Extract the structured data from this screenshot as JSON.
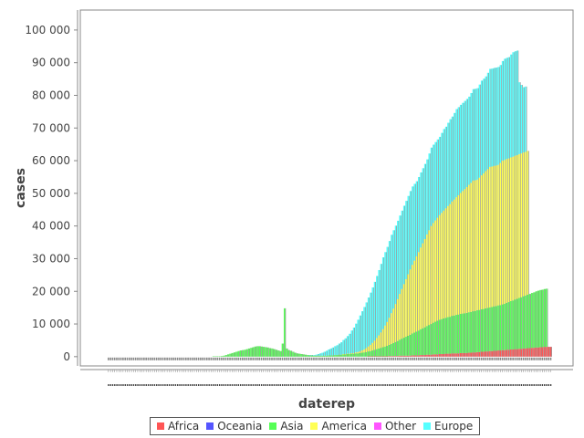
{
  "chart_data": {
    "type": "bar",
    "stacked": true,
    "xlabel": "daterep",
    "ylabel": "cases",
    "ylim": [
      -2000,
      105000
    ],
    "yticks": [
      0,
      10000,
      20000,
      30000,
      40000,
      50000,
      60000,
      70000,
      80000,
      90000,
      100000
    ],
    "ytick_labels": [
      "0",
      "10 000",
      "20 000",
      "30 000",
      "40 000",
      "50 000",
      "60 000",
      "70 000",
      "80 000",
      "90 000",
      "100 000"
    ],
    "x_tick_labels_note": "dense unreadable date labels",
    "legend": "bottom-center",
    "grid": false,
    "series": [
      {
        "name": "Africa",
        "color": "#ff5555",
        "values": [
          0,
          0,
          0,
          0,
          0,
          0,
          0,
          0,
          0,
          0,
          0,
          0,
          0,
          0,
          0,
          0,
          0,
          0,
          0,
          0,
          0,
          0,
          0,
          0,
          0,
          0,
          0,
          0,
          0,
          0,
          0,
          0,
          0,
          0,
          0,
          0,
          0,
          0,
          0,
          0,
          0,
          0,
          0,
          0,
          0,
          0,
          0,
          0,
          0,
          0,
          0,
          0,
          0,
          0,
          0,
          0,
          0,
          0,
          0,
          0,
          0,
          0,
          0,
          0,
          0,
          0,
          0,
          0,
          0,
          0,
          0,
          0,
          0,
          0,
          0,
          0,
          0,
          0,
          0,
          0,
          0,
          0,
          0,
          0,
          0,
          0,
          0,
          0,
          0,
          0,
          0,
          0,
          0,
          0,
          0,
          0,
          0,
          0,
          0,
          0,
          0,
          0,
          0,
          0,
          0,
          0,
          0,
          0,
          0,
          0,
          0,
          0,
          0,
          0,
          0,
          0,
          0,
          0,
          0,
          0,
          0,
          0,
          0,
          0,
          100,
          100,
          100,
          100,
          100,
          100,
          100,
          100,
          100,
          100,
          200,
          200,
          200,
          200,
          200,
          300,
          300,
          300,
          300,
          300,
          300,
          400,
          400,
          400,
          400,
          500,
          500,
          500,
          600,
          600,
          600,
          700,
          700,
          700,
          800,
          800,
          800,
          900,
          900,
          900,
          1000,
          1000,
          1000,
          1000,
          1100,
          1100,
          1100,
          1100,
          1200,
          1200,
          1300,
          1300,
          1400,
          1400,
          1500,
          1500,
          1600,
          1600,
          1700,
          1700,
          1800,
          1800,
          1900,
          1900,
          2000,
          2000,
          2100,
          2100,
          2200,
          2200,
          2300,
          2300,
          2400,
          2400,
          2500,
          2500,
          2600,
          2600,
          2700,
          2700,
          2800,
          2800,
          2900,
          2900,
          3000,
          3000,
          3000,
          3000
        ]
      },
      {
        "name": "Oceania",
        "color": "#5555ff",
        "values": [
          0,
          0,
          0,
          0,
          0,
          0,
          0,
          0,
          0,
          0,
          0,
          0,
          0,
          0,
          0,
          0,
          0,
          0,
          0,
          0,
          0,
          0,
          0,
          0,
          0,
          0,
          0,
          0,
          0,
          0,
          0,
          0,
          0,
          0,
          0,
          0,
          0,
          0,
          0,
          0,
          0,
          0,
          0,
          0,
          0,
          0,
          0,
          0,
          0,
          0,
          0,
          0,
          0,
          0,
          0,
          0,
          0,
          0,
          0,
          0,
          0,
          0,
          0,
          0,
          0,
          0,
          0,
          0,
          0,
          0,
          0,
          0,
          0,
          0,
          0,
          0,
          0,
          0,
          0,
          0,
          0,
          0,
          0,
          0,
          0,
          0,
          0,
          0,
          0,
          0,
          0,
          0,
          0,
          0,
          0,
          0,
          0,
          0,
          0,
          0,
          0,
          0,
          0,
          0,
          0,
          0,
          0,
          0,
          0,
          0,
          0,
          0,
          0,
          0,
          0,
          0,
          0,
          0,
          0,
          0,
          0,
          0,
          0,
          0,
          0,
          0,
          0,
          0,
          0,
          0,
          0,
          0,
          0,
          0,
          0,
          0,
          0,
          0,
          0,
          0,
          0,
          0,
          0,
          0,
          0,
          0,
          0,
          0,
          0,
          0,
          0,
          0,
          0,
          0,
          0,
          0,
          0,
          0,
          0,
          0,
          0,
          0,
          0,
          0,
          0,
          0,
          0,
          0,
          0,
          0,
          0,
          0,
          0,
          0,
          0,
          0,
          0,
          0,
          0,
          0,
          0,
          0,
          0,
          0,
          0,
          0,
          0,
          0,
          0,
          0,
          0,
          0,
          0,
          0,
          0,
          0,
          0,
          0,
          0,
          0,
          0,
          0,
          0,
          0,
          0,
          0,
          0,
          0,
          0,
          0,
          0,
          0
        ]
      },
      {
        "name": "Asia",
        "color": "#55ff55",
        "values": [
          0,
          0,
          0,
          0,
          0,
          0,
          0,
          0,
          0,
          0,
          0,
          0,
          0,
          0,
          0,
          0,
          0,
          0,
          0,
          0,
          0,
          0,
          0,
          0,
          0,
          0,
          0,
          0,
          0,
          0,
          0,
          0,
          0,
          0,
          0,
          0,
          0,
          0,
          0,
          0,
          0,
          0,
          0,
          0,
          0,
          0,
          0,
          0,
          0,
          0,
          100,
          100,
          100,
          100,
          200,
          300,
          500,
          700,
          900,
          1100,
          1300,
          1500,
          1700,
          1900,
          2000,
          2100,
          2300,
          2500,
          2700,
          2900,
          3100,
          3200,
          3200,
          3100,
          3000,
          2900,
          2800,
          2600,
          2500,
          2300,
          2100,
          1900,
          1700,
          4000,
          14800,
          2500,
          2000,
          1800,
          1500,
          1200,
          1000,
          900,
          800,
          700,
          600,
          500,
          400,
          400,
          300,
          300,
          300,
          300,
          300,
          300,
          300,
          400,
          400,
          400,
          500,
          500,
          600,
          600,
          700,
          700,
          800,
          800,
          900,
          900,
          1000,
          1000,
          1100,
          1200,
          1300,
          1400,
          1500,
          1600,
          1800,
          2000,
          2200,
          2400,
          2600,
          2800,
          3000,
          3200,
          3400,
          3700,
          4000,
          4300,
          4600,
          4900,
          5200,
          5500,
          5800,
          6100,
          6400,
          6700,
          7000,
          7300,
          7600,
          7900,
          8200,
          8500,
          8800,
          9100,
          9400,
          9700,
          10000,
          10300,
          10500,
          10700,
          10900,
          11000,
          11200,
          11300,
          11500,
          11600,
          11800,
          11900,
          12000,
          12100,
          12200,
          12300,
          12400,
          12500,
          12600,
          12700,
          12800,
          12900,
          13000,
          13100,
          13200,
          13300,
          13400,
          13500,
          13600,
          13700,
          13800,
          13900,
          14000,
          14200,
          14400,
          14600,
          14800,
          15000,
          15200,
          15400,
          15600,
          15800,
          16000,
          16200,
          16400,
          16600,
          16800,
          17000,
          17200,
          17400,
          17500,
          17600,
          17700,
          17800
        ]
      },
      {
        "name": "America",
        "color": "#ffff55",
        "values": [
          0,
          0,
          0,
          0,
          0,
          0,
          0,
          0,
          0,
          0,
          0,
          0,
          0,
          0,
          0,
          0,
          0,
          0,
          0,
          0,
          0,
          0,
          0,
          0,
          0,
          0,
          0,
          0,
          0,
          0,
          0,
          0,
          0,
          0,
          0,
          0,
          0,
          0,
          0,
          0,
          0,
          0,
          0,
          0,
          0,
          0,
          0,
          0,
          0,
          0,
          0,
          0,
          0,
          0,
          0,
          0,
          0,
          0,
          0,
          0,
          0,
          0,
          0,
          0,
          0,
          0,
          0,
          0,
          0,
          0,
          0,
          0,
          0,
          0,
          0,
          0,
          0,
          0,
          0,
          0,
          0,
          0,
          0,
          0,
          0,
          0,
          0,
          0,
          0,
          0,
          0,
          0,
          0,
          0,
          0,
          0,
          0,
          0,
          0,
          0,
          0,
          0,
          0,
          0,
          0,
          0,
          0,
          0,
          0,
          0,
          0,
          0,
          100,
          100,
          100,
          100,
          200,
          200,
          300,
          400,
          500,
          700,
          900,
          1200,
          1500,
          1900,
          2300,
          2800,
          3400,
          4000,
          4700,
          5500,
          6400,
          7300,
          8300,
          9400,
          10500,
          11600,
          12800,
          14000,
          15200,
          16400,
          17600,
          18800,
          20000,
          21000,
          22000,
          23000,
          24000,
          25000,
          26000,
          27000,
          28000,
          29000,
          30000,
          30500,
          31000,
          31500,
          32000,
          32500,
          33000,
          33500,
          34000,
          34500,
          35000,
          35500,
          36000,
          36500,
          37000,
          37500,
          38000,
          38500,
          39000,
          39500,
          40000,
          40000,
          40000,
          40500,
          41000,
          41500,
          42000,
          42500,
          43000,
          43000,
          43000,
          43000,
          43000,
          43500,
          44000,
          44000,
          44000,
          44000,
          44000,
          44000,
          44000,
          44000,
          44000,
          44000,
          44000,
          44000,
          44000
        ]
      },
      {
        "name": "Other",
        "color": "#ff55ff",
        "values": [
          0,
          0,
          0,
          0,
          0,
          0,
          0,
          0,
          0,
          0,
          0,
          0,
          0,
          0,
          0,
          0,
          0,
          0,
          0,
          0,
          0,
          0,
          0,
          0,
          0,
          0,
          0,
          0,
          0,
          0,
          0,
          0,
          0,
          0,
          0,
          0,
          0,
          0,
          0,
          0,
          0,
          0,
          0,
          0,
          0,
          0,
          0,
          0,
          0,
          0,
          0,
          0,
          0,
          0,
          0,
          0,
          0,
          0,
          0,
          0,
          0,
          0,
          0,
          0,
          0,
          0,
          0,
          0,
          0,
          0,
          0,
          0,
          0,
          0,
          0,
          0,
          0,
          0,
          0,
          0,
          0,
          0,
          0,
          0,
          0,
          0,
          0,
          0,
          0,
          0,
          0,
          0,
          0,
          0,
          0,
          0,
          0,
          0,
          0,
          0,
          0,
          0,
          0,
          0,
          0,
          0,
          0,
          0,
          0,
          0,
          0,
          0,
          0,
          0,
          0,
          0,
          0,
          0,
          0,
          0,
          0,
          0,
          0,
          0,
          0,
          0,
          0,
          0,
          0,
          0,
          0,
          0,
          0,
          0,
          0,
          0,
          0,
          0,
          0,
          0,
          0,
          0,
          0,
          0,
          0,
          0,
          0,
          0,
          0,
          0,
          0,
          0,
          0,
          0,
          0,
          0,
          0,
          0,
          0,
          0,
          0,
          0,
          0,
          0,
          0,
          0,
          0,
          0,
          0,
          0,
          0,
          0,
          0,
          0,
          0,
          0,
          0,
          0,
          0,
          0,
          0,
          0,
          0,
          0,
          0,
          0,
          0,
          0,
          0,
          0,
          0,
          0,
          0,
          0,
          0,
          0,
          0,
          0,
          0,
          0,
          0,
          0,
          0,
          0,
          0,
          0,
          0,
          0,
          0,
          0,
          0,
          0
        ]
      },
      {
        "name": "Europe",
        "color": "#55ffff",
        "values": [
          0,
          0,
          0,
          0,
          0,
          0,
          0,
          0,
          0,
          0,
          0,
          0,
          0,
          0,
          0,
          0,
          0,
          0,
          0,
          0,
          0,
          0,
          0,
          0,
          0,
          0,
          0,
          0,
          0,
          0,
          0,
          0,
          0,
          0,
          0,
          0,
          0,
          0,
          0,
          0,
          0,
          0,
          0,
          0,
          0,
          0,
          0,
          0,
          0,
          0,
          0,
          0,
          0,
          0,
          0,
          0,
          0,
          0,
          0,
          0,
          0,
          0,
          0,
          0,
          0,
          0,
          0,
          0,
          0,
          0,
          0,
          0,
          0,
          0,
          0,
          0,
          0,
          0,
          0,
          0,
          0,
          0,
          0,
          0,
          0,
          0,
          0,
          0,
          0,
          0,
          0,
          0,
          0,
          0,
          0,
          0,
          100,
          100,
          200,
          300,
          500,
          700,
          900,
          1200,
          1500,
          1800,
          2100,
          2400,
          2700,
          3000,
          3400,
          3800,
          4300,
          4800,
          5400,
          6100,
          6900,
          7800,
          8800,
          9900,
          11000,
          12000,
          13000,
          14000,
          15000,
          16000,
          17000,
          18000,
          19000,
          20000,
          21000,
          22000,
          22500,
          23000,
          23500,
          24000,
          24000,
          24000,
          24000,
          24000,
          24000,
          24000,
          24000,
          24000,
          24000,
          24000,
          23500,
          23000,
          23000,
          23000,
          23000,
          23000,
          23000,
          23500,
          24000,
          24000,
          24000,
          24000,
          24000,
          24500,
          25000,
          25000,
          25500,
          26000,
          26000,
          26500,
          27000,
          27000,
          27000,
          27000,
          27000,
          27000,
          27000,
          27500,
          28000,
          28000,
          28000,
          28500,
          29000,
          29000,
          29000,
          29500,
          30000,
          30000,
          30000,
          30000,
          30000,
          30000,
          30500,
          31000,
          31000,
          31000,
          31500,
          32000,
          32000,
          32000,
          22000,
          21000,
          20000,
          20000
        ]
      }
    ]
  }
}
